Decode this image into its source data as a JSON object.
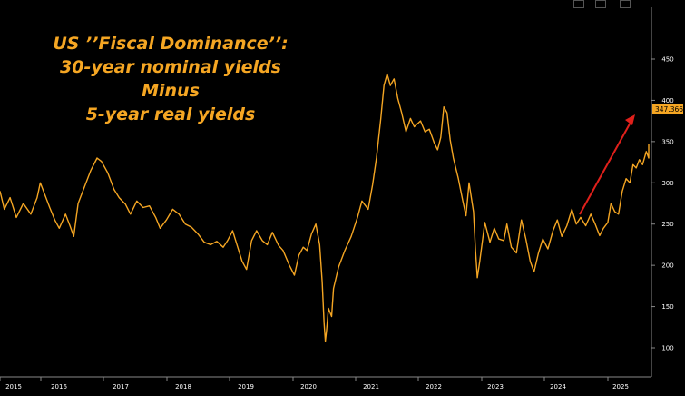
{
  "chart_data": {
    "type": "line",
    "title_lines": [
      "US ’’Fiscal Dominance’’:",
      "30-year nominal yields",
      "Minus",
      "5-year real yields"
    ],
    "xlabel": "",
    "ylabel": "",
    "x_ticks": [
      "2015",
      "2016",
      "2017",
      "2018",
      "2019",
      "2020",
      "2021",
      "2022",
      "2023",
      "2024",
      "2025"
    ],
    "y_ticks": [
      100,
      150,
      200,
      250,
      300,
      350,
      400,
      450
    ],
    "ylim": [
      75,
      455
    ],
    "grid": false,
    "last_value_label": "347.3667",
    "line_color": "#f5a623",
    "trend_arrow_color": "#e0201b",
    "series": [
      {
        "values": [
          [
            2015.0,
            290
          ],
          [
            2015.08,
            268
          ],
          [
            2015.17,
            282
          ],
          [
            2015.27,
            258
          ],
          [
            2015.38,
            275
          ],
          [
            2015.5,
            262
          ],
          [
            2015.6,
            282
          ],
          [
            2015.65,
            300
          ],
          [
            2015.72,
            286
          ],
          [
            2015.8,
            270
          ],
          [
            2015.88,
            255
          ],
          [
            2015.95,
            245
          ],
          [
            2016.05,
            262
          ],
          [
            2016.12,
            248
          ],
          [
            2016.18,
            235
          ],
          [
            2016.25,
            275
          ],
          [
            2016.35,
            295
          ],
          [
            2016.45,
            315
          ],
          [
            2016.55,
            330
          ],
          [
            2016.62,
            326
          ],
          [
            2016.72,
            312
          ],
          [
            2016.82,
            292
          ],
          [
            2016.9,
            282
          ],
          [
            2017.0,
            274
          ],
          [
            2017.08,
            262
          ],
          [
            2017.18,
            278
          ],
          [
            2017.28,
            270
          ],
          [
            2017.38,
            272
          ],
          [
            2017.48,
            258
          ],
          [
            2017.55,
            245
          ],
          [
            2017.65,
            255
          ],
          [
            2017.75,
            268
          ],
          [
            2017.85,
            262
          ],
          [
            2017.95,
            250
          ],
          [
            2018.05,
            246
          ],
          [
            2018.15,
            238
          ],
          [
            2018.25,
            228
          ],
          [
            2018.35,
            225
          ],
          [
            2018.45,
            229
          ],
          [
            2018.55,
            222
          ],
          [
            2018.62,
            230
          ],
          [
            2018.7,
            242
          ],
          [
            2018.78,
            222
          ],
          [
            2018.85,
            205
          ],
          [
            2018.92,
            195
          ],
          [
            2019.0,
            230
          ],
          [
            2019.08,
            242
          ],
          [
            2019.17,
            230
          ],
          [
            2019.25,
            225
          ],
          [
            2019.33,
            240
          ],
          [
            2019.43,
            224
          ],
          [
            2019.5,
            218
          ],
          [
            2019.6,
            200
          ],
          [
            2019.68,
            188
          ],
          [
            2019.75,
            212
          ],
          [
            2019.82,
            222
          ],
          [
            2019.88,
            218
          ],
          [
            2019.95,
            238
          ],
          [
            2020.02,
            250
          ],
          [
            2020.08,
            225
          ],
          [
            2020.12,
            180
          ],
          [
            2020.15,
            130
          ],
          [
            2020.17,
            108
          ],
          [
            2020.19,
            122
          ],
          [
            2020.22,
            148
          ],
          [
            2020.27,
            138
          ],
          [
            2020.3,
            172
          ],
          [
            2020.38,
            198
          ],
          [
            2020.48,
            218
          ],
          [
            2020.58,
            235
          ],
          [
            2020.68,
            258
          ],
          [
            2020.75,
            278
          ],
          [
            2020.85,
            268
          ],
          [
            2020.92,
            298
          ],
          [
            2020.98,
            330
          ],
          [
            2021.05,
            378
          ],
          [
            2021.1,
            418
          ],
          [
            2021.15,
            432
          ],
          [
            2021.2,
            418
          ],
          [
            2021.26,
            426
          ],
          [
            2021.32,
            402
          ],
          [
            2021.38,
            385
          ],
          [
            2021.45,
            362
          ],
          [
            2021.52,
            378
          ],
          [
            2021.58,
            368
          ],
          [
            2021.68,
            375
          ],
          [
            2021.75,
            362
          ],
          [
            2021.82,
            365
          ],
          [
            2021.9,
            348
          ],
          [
            2021.95,
            340
          ],
          [
            2022.0,
            355
          ],
          [
            2022.05,
            392
          ],
          [
            2022.1,
            385
          ],
          [
            2022.15,
            352
          ],
          [
            2022.2,
            330
          ],
          [
            2022.28,
            305
          ],
          [
            2022.35,
            278
          ],
          [
            2022.4,
            260
          ],
          [
            2022.45,
            300
          ],
          [
            2022.52,
            265
          ],
          [
            2022.55,
            220
          ],
          [
            2022.58,
            185
          ],
          [
            2022.62,
            205
          ],
          [
            2022.7,
            252
          ],
          [
            2022.78,
            228
          ],
          [
            2022.85,
            245
          ],
          [
            2022.92,
            232
          ],
          [
            2023.0,
            230
          ],
          [
            2023.05,
            250
          ],
          [
            2023.12,
            222
          ],
          [
            2023.2,
            215
          ],
          [
            2023.28,
            255
          ],
          [
            2023.35,
            232
          ],
          [
            2023.42,
            205
          ],
          [
            2023.48,
            192
          ],
          [
            2023.55,
            215
          ],
          [
            2023.62,
            232
          ],
          [
            2023.7,
            220
          ],
          [
            2023.78,
            242
          ],
          [
            2023.85,
            255
          ],
          [
            2023.92,
            235
          ],
          [
            2024.0,
            248
          ],
          [
            2024.08,
            268
          ],
          [
            2024.15,
            250
          ],
          [
            2024.22,
            258
          ],
          [
            2024.3,
            248
          ],
          [
            2024.38,
            262
          ],
          [
            2024.45,
            250
          ],
          [
            2024.52,
            236
          ],
          [
            2024.58,
            245
          ],
          [
            2024.65,
            252
          ],
          [
            2024.7,
            275
          ],
          [
            2024.76,
            265
          ],
          [
            2024.82,
            262
          ],
          [
            2024.88,
            290
          ],
          [
            2024.94,
            305
          ],
          [
            2025.0,
            300
          ],
          [
            2025.05,
            322
          ],
          [
            2025.1,
            318
          ],
          [
            2025.15,
            328
          ],
          [
            2025.2,
            322
          ],
          [
            2025.26,
            338
          ],
          [
            2025.32,
            330
          ],
          [
            2025.36,
            347
          ]
        ]
      }
    ]
  }
}
